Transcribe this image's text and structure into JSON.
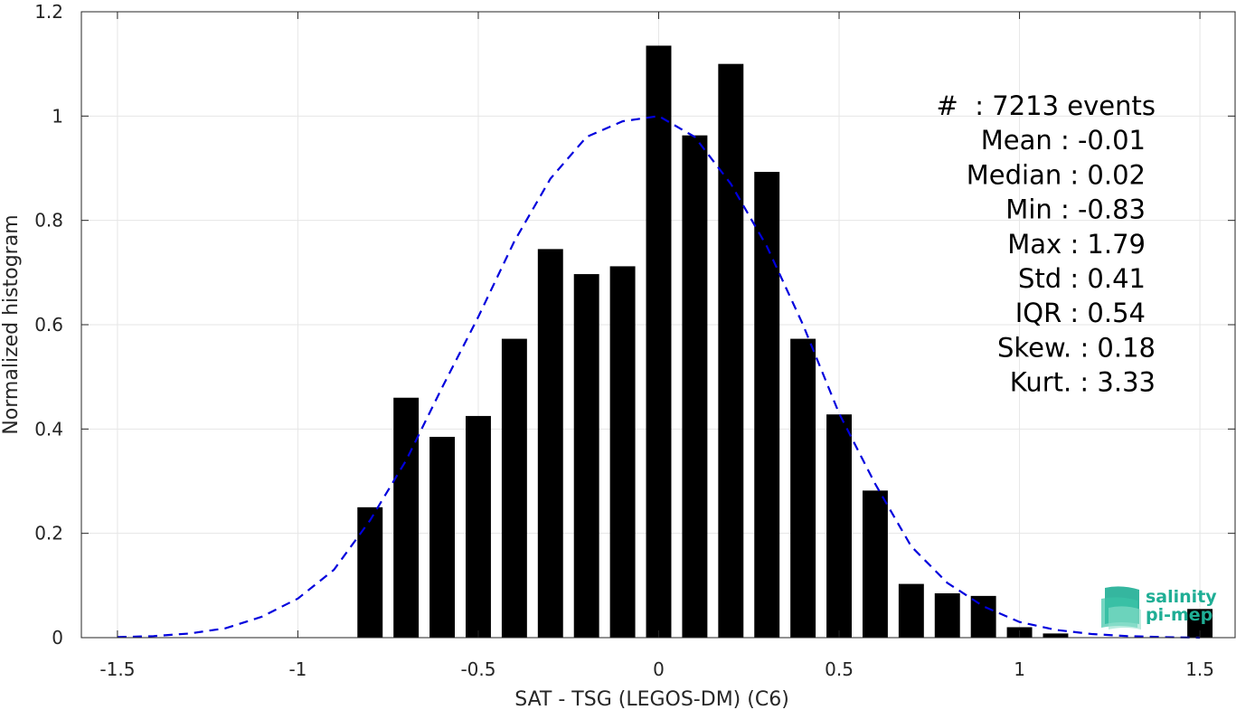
{
  "chart_data": {
    "type": "bar",
    "xlabel": "SAT - TSG (LEGOS-DM) (C6)",
    "ylabel": "Normalized histogram",
    "xlim": [
      -1.6,
      1.6
    ],
    "ylim": [
      0,
      1.2
    ],
    "grid": true,
    "x_ticks": [
      -1.5,
      -1,
      -0.5,
      0,
      0.5,
      1,
      1.5
    ],
    "x_tick_labels": [
      "-1.5",
      "-1",
      "-0.5",
      "0",
      "0.5",
      "1",
      "1.5"
    ],
    "y_ticks": [
      0,
      0.2,
      0.4,
      0.6,
      0.8,
      1,
      1.2
    ],
    "y_tick_labels": [
      "0",
      "0.2",
      "0.4",
      "0.6",
      "0.8",
      "1",
      "1.2"
    ],
    "bar_width": 0.07,
    "bars": {
      "x": [
        -0.8,
        -0.7,
        -0.6,
        -0.5,
        -0.4,
        -0.3,
        -0.2,
        -0.1,
        0.0,
        0.1,
        0.2,
        0.3,
        0.4,
        0.5,
        0.6,
        0.7,
        0.8,
        0.9,
        1.0,
        1.1,
        1.2,
        1.3,
        1.4,
        1.5
      ],
      "values": [
        0.25,
        0.46,
        0.385,
        0.425,
        0.573,
        0.745,
        0.697,
        0.712,
        1.135,
        0.963,
        1.1,
        0.893,
        0.573,
        0.428,
        0.282,
        0.103,
        0.085,
        0.08,
        0.02,
        0.008,
        0.0,
        0.0,
        0.0,
        0.055
      ],
      "color": "#000000"
    },
    "fit_curve": {
      "style": "dashed",
      "color": "#0000dd",
      "x": [
        -1.5,
        -1.4,
        -1.3,
        -1.2,
        -1.1,
        -1.0,
        -0.9,
        -0.8,
        -0.7,
        -0.6,
        -0.5,
        -0.4,
        -0.3,
        -0.2,
        -0.1,
        0.0,
        0.1,
        0.2,
        0.3,
        0.4,
        0.5,
        0.6,
        0.7,
        0.8,
        0.9,
        1.0,
        1.1,
        1.2,
        1.3,
        1.4,
        1.5
      ],
      "y": [
        0.001,
        0.003,
        0.008,
        0.018,
        0.04,
        0.075,
        0.13,
        0.225,
        0.34,
        0.48,
        0.615,
        0.76,
        0.88,
        0.96,
        0.99,
        1.0,
        0.96,
        0.87,
        0.75,
        0.6,
        0.43,
        0.295,
        0.175,
        0.105,
        0.06,
        0.03,
        0.015,
        0.007,
        0.003,
        0.001,
        0.0
      ]
    },
    "stats": [
      "#  : 7213 events",
      "Mean : -0.01",
      "Median : 0.02",
      "Min : -0.83",
      "Max : 1.79",
      "Std : 0.41",
      "IQR : 0.54",
      "Skew. : 0.18",
      "Kurt. : 3.33"
    ]
  },
  "logo": {
    "line1": "salinity",
    "line2": "pi-mep",
    "color": "#1fae95"
  }
}
